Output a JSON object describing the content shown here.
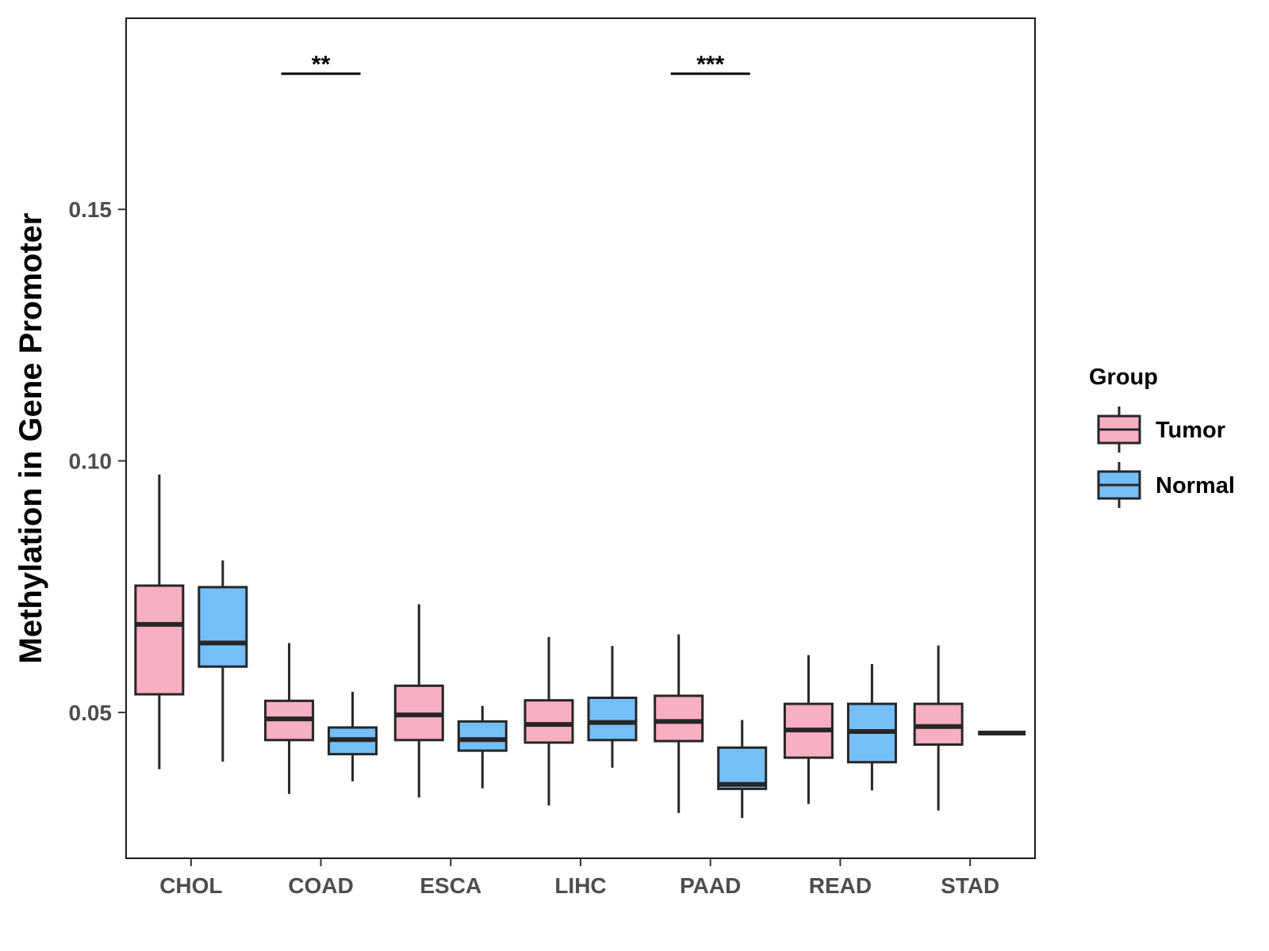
{
  "chart_data": {
    "type": "boxplot",
    "title": "",
    "xlabel": "",
    "ylabel": "Methylation in Gene Promoter",
    "ylim": [
      0.021,
      0.188
    ],
    "yticks": [
      0.05,
      0.1,
      0.15
    ],
    "ytick_labels": [
      "0.05",
      "0.10",
      "0.15"
    ],
    "grid": false,
    "categories": [
      "CHOL",
      "COAD",
      "ESCA",
      "LIHC",
      "PAAD",
      "READ",
      "STAD"
    ],
    "legend": {
      "title": "Group",
      "position": "right",
      "entries": [
        {
          "name": "Tumor",
          "color": "#F9AFC2"
        },
        {
          "name": "Normal",
          "color": "#74BFF8"
        }
      ]
    },
    "series": [
      {
        "name": "Tumor",
        "color": "#F9AFC2",
        "boxes": [
          {
            "category": "CHOL",
            "min": 0.0387,
            "q1": 0.0536,
            "median": 0.0675,
            "q3": 0.0752,
            "max": 0.0973
          },
          {
            "category": "COAD",
            "min": 0.0338,
            "q1": 0.0445,
            "median": 0.0487,
            "q3": 0.0523,
            "max": 0.0638
          },
          {
            "category": "ESCA",
            "min": 0.0331,
            "q1": 0.0445,
            "median": 0.0495,
            "q3": 0.0553,
            "max": 0.0715
          },
          {
            "category": "LIHC",
            "min": 0.0315,
            "q1": 0.044,
            "median": 0.0476,
            "q3": 0.0524,
            "max": 0.065
          },
          {
            "category": "PAAD",
            "min": 0.03,
            "q1": 0.0443,
            "median": 0.0482,
            "q3": 0.0533,
            "max": 0.0655
          },
          {
            "category": "READ",
            "min": 0.0318,
            "q1": 0.041,
            "median": 0.0465,
            "q3": 0.0517,
            "max": 0.0614
          },
          {
            "category": "STAD",
            "min": 0.0305,
            "q1": 0.0436,
            "median": 0.0472,
            "q3": 0.0517,
            "max": 0.0633
          }
        ]
      },
      {
        "name": "Normal",
        "color": "#74BFF8",
        "boxes": [
          {
            "category": "CHOL",
            "min": 0.0402,
            "q1": 0.0591,
            "median": 0.0638,
            "q3": 0.0749,
            "max": 0.0802
          },
          {
            "category": "COAD",
            "min": 0.0363,
            "q1": 0.0417,
            "median": 0.0446,
            "q3": 0.047,
            "max": 0.0541
          },
          {
            "category": "ESCA",
            "min": 0.0349,
            "q1": 0.0424,
            "median": 0.0446,
            "q3": 0.0482,
            "max": 0.0513
          },
          {
            "category": "LIHC",
            "min": 0.039,
            "q1": 0.0445,
            "median": 0.048,
            "q3": 0.0529,
            "max": 0.0632
          },
          {
            "category": "PAAD",
            "min": 0.029,
            "q1": 0.0348,
            "median": 0.0357,
            "q3": 0.043,
            "max": 0.0485
          },
          {
            "category": "READ",
            "min": 0.0345,
            "q1": 0.0401,
            "median": 0.0462,
            "q3": 0.0517,
            "max": 0.0596
          },
          {
            "category": "STAD",
            "min": 0.0459,
            "q1": 0.0459,
            "median": 0.0459,
            "q3": 0.0459,
            "max": 0.0459
          }
        ]
      }
    ],
    "annotations": [
      {
        "category": "COAD",
        "label": "**"
      },
      {
        "category": "PAAD",
        "label": "***"
      }
    ]
  }
}
